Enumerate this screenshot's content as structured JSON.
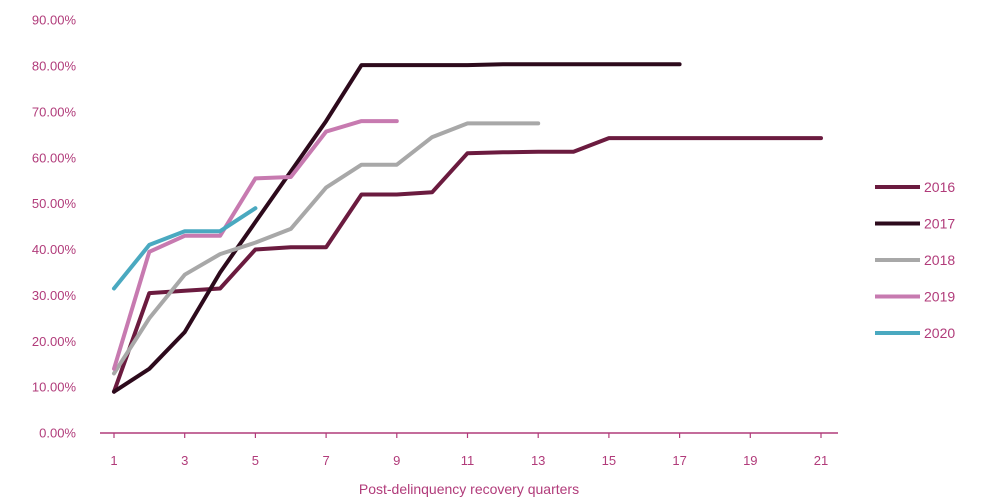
{
  "chart_data": {
    "type": "line",
    "title": "",
    "xlabel": "Post-delinquency recovery quarters",
    "ylabel": "",
    "xlim": [
      0.2,
      21.5
    ],
    "ylim": [
      0,
      90
    ],
    "x_ticks": [
      1,
      3,
      5,
      7,
      9,
      11,
      13,
      15,
      17,
      19,
      21
    ],
    "y_ticks": [
      0,
      10,
      20,
      30,
      40,
      50,
      60,
      70,
      80,
      90
    ],
    "y_tick_labels": [
      "0.00%",
      "10.00%",
      "20.00%",
      "30.00%",
      "40.00%",
      "50.00%",
      "60.00%",
      "70.00%",
      "80.00%",
      "90.00%"
    ],
    "grid": false,
    "legend_position": "right",
    "series": [
      {
        "name": "2016",
        "color": "#6b1b3f",
        "points": [
          [
            1,
            9
          ],
          [
            2,
            30.5
          ],
          [
            3,
            31
          ],
          [
            4,
            31.5
          ],
          [
            5,
            40
          ],
          [
            6,
            40.5
          ],
          [
            7,
            40.5
          ],
          [
            8,
            52
          ],
          [
            9,
            52
          ],
          [
            10,
            52.5
          ],
          [
            11,
            61
          ],
          [
            12,
            61.2
          ],
          [
            13,
            61.3
          ],
          [
            14,
            61.3
          ],
          [
            15,
            64.3
          ],
          [
            16,
            64.3
          ],
          [
            17,
            64.3
          ],
          [
            18,
            64.3
          ],
          [
            19,
            64.3
          ],
          [
            20,
            64.3
          ],
          [
            21,
            64.3
          ]
        ]
      },
      {
        "name": "2017",
        "color": "#2d0a1c",
        "points": [
          [
            1,
            9
          ],
          [
            2,
            14
          ],
          [
            3,
            22
          ],
          [
            4,
            35
          ],
          [
            5,
            46
          ],
          [
            6,
            57
          ],
          [
            7,
            68
          ],
          [
            8,
            80.2
          ],
          [
            9,
            80.2
          ],
          [
            10,
            80.2
          ],
          [
            11,
            80.2
          ],
          [
            12,
            80.4
          ],
          [
            13,
            80.4
          ],
          [
            14,
            80.4
          ],
          [
            15,
            80.4
          ],
          [
            16,
            80.4
          ],
          [
            17,
            80.4
          ]
        ]
      },
      {
        "name": "2018",
        "color": "#a8a8a8",
        "points": [
          [
            1,
            13
          ],
          [
            2,
            25
          ],
          [
            3,
            34.5
          ],
          [
            4,
            39
          ],
          [
            5,
            41.5
          ],
          [
            6,
            44.5
          ],
          [
            7,
            53.5
          ],
          [
            8,
            58.5
          ],
          [
            9,
            58.5
          ],
          [
            10,
            64.5
          ],
          [
            11,
            67.5
          ],
          [
            12,
            67.5
          ],
          [
            13,
            67.5
          ]
        ]
      },
      {
        "name": "2019",
        "color": "#c77ab0",
        "points": [
          [
            1,
            14
          ],
          [
            2,
            39.5
          ],
          [
            3,
            43
          ],
          [
            4,
            43
          ],
          [
            5,
            55.5
          ],
          [
            6,
            55.8
          ],
          [
            7,
            65.7
          ],
          [
            8,
            68
          ],
          [
            9,
            68
          ]
        ]
      },
      {
        "name": "2020",
        "color": "#4aa9c0",
        "points": [
          [
            1,
            31.5
          ],
          [
            2,
            41
          ],
          [
            3,
            44
          ],
          [
            4,
            44
          ],
          [
            5,
            49
          ]
        ]
      }
    ]
  }
}
